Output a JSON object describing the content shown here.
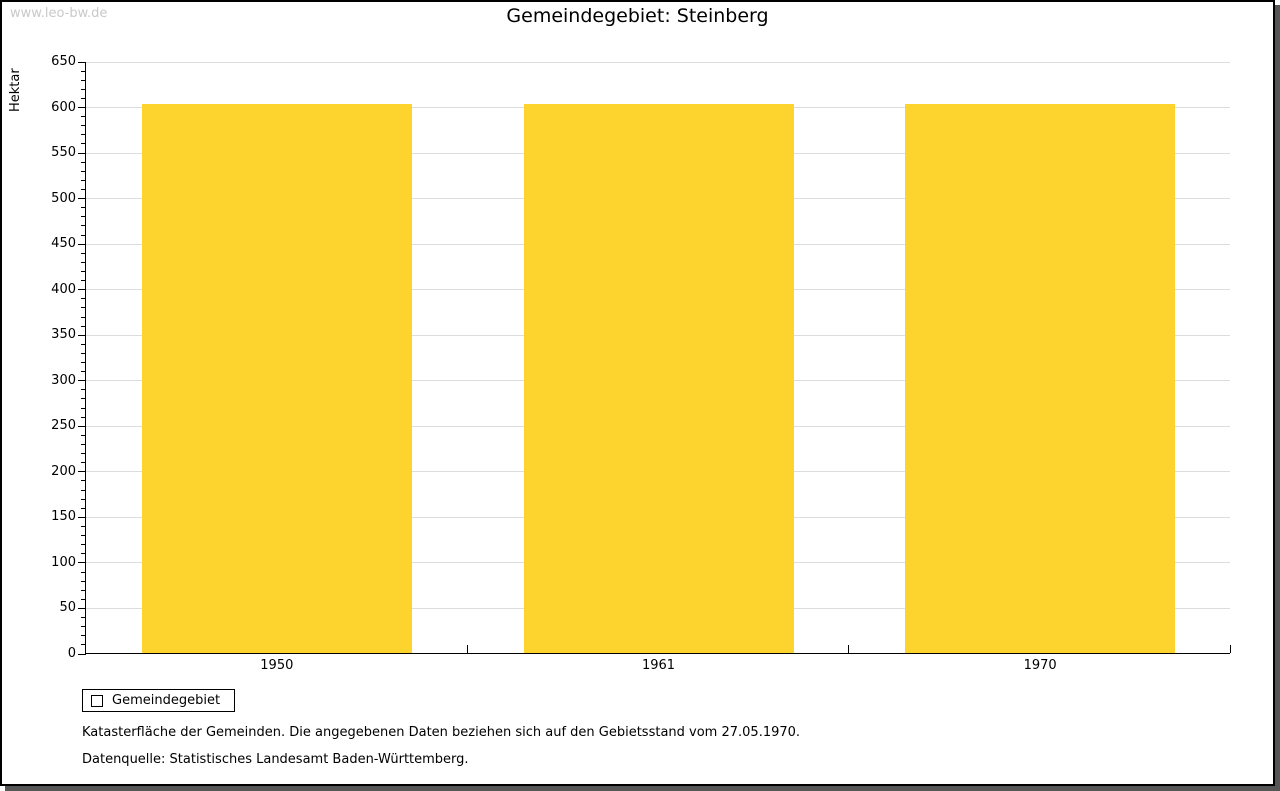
{
  "watermark": "www.leo-bw.de",
  "title": "Gemeindegebiet: Steinberg",
  "legend": {
    "label": "Gemeindegebiet"
  },
  "footnotes": [
    "Katasterfläche der Gemeinden. Die angegebenen Daten beziehen sich auf den Gebietsstand vom 27.05.1970.",
    "Datenquelle: Statistisches Landesamt Baden-Württemberg."
  ],
  "chart_data": {
    "type": "bar",
    "title": "Gemeindegebiet: Steinberg",
    "categories": [
      "1950",
      "1961",
      "1970"
    ],
    "series": [
      {
        "name": "Gemeindegebiet",
        "values": [
          603,
          603,
          603
        ]
      }
    ],
    "xlabel": "",
    "ylabel": "Hektar",
    "ylim": [
      0,
      650
    ],
    "ytick_major": 50,
    "ytick_minor": 10,
    "grid": true,
    "legend_position": "bottom-left",
    "colors": {
      "bar": "#FCD42D",
      "grid": "#DDDDDD",
      "axis": "#000000",
      "watermark": "#C9C9C9",
      "frame_shadow": "#565656"
    }
  }
}
